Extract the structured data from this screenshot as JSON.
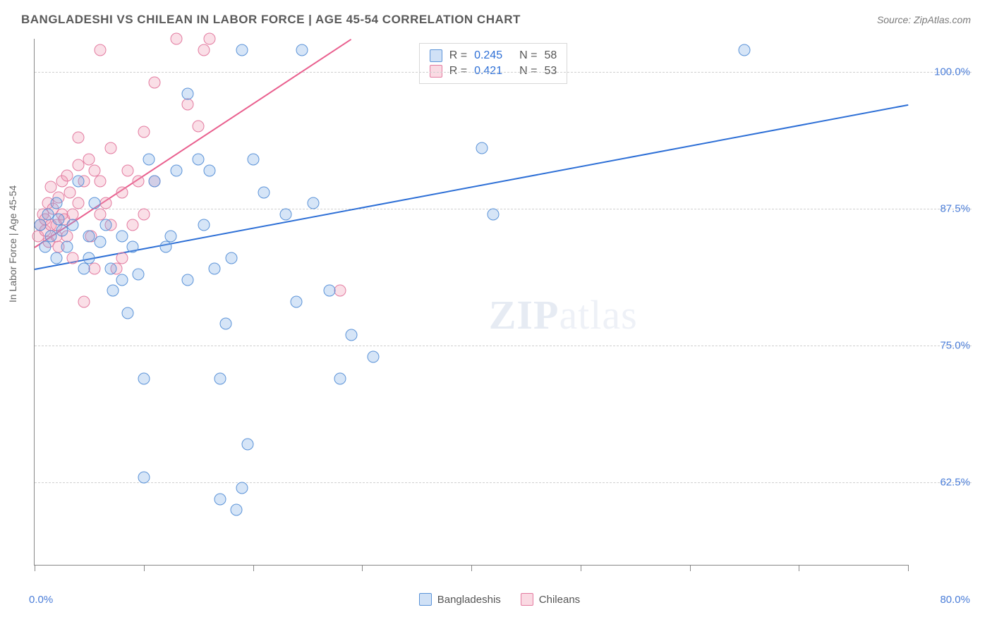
{
  "header": {
    "title": "BANGLADESHI VS CHILEAN IN LABOR FORCE | AGE 45-54 CORRELATION CHART",
    "source": "Source: ZipAtlas.com"
  },
  "watermark": {
    "bold": "ZIP",
    "rest": "atlas"
  },
  "chart": {
    "type": "scatter",
    "y_axis_title": "In Labor Force | Age 45-54",
    "xlim": [
      0,
      80
    ],
    "ylim": [
      55,
      103
    ],
    "x_ticks": [
      0,
      10,
      20,
      30,
      40,
      50,
      60,
      70,
      80
    ],
    "y_ticks": [
      62.5,
      75.0,
      87.5,
      100.0
    ],
    "y_tick_labels": [
      "62.5%",
      "75.0%",
      "87.5%",
      "100.0%"
    ],
    "x_min_label": "0.0%",
    "x_max_label": "80.0%",
    "grid_color": "#d0d0d0",
    "background_color": "#ffffff",
    "marker_size": 17,
    "series": {
      "bangladeshi": {
        "label": "Bangladeshis",
        "color_fill": "rgba(120,170,230,0.30)",
        "color_stroke": "#5b93d8",
        "trend_color": "#2d6fd6",
        "R": "0.245",
        "N": "58",
        "trend": {
          "x1": 0,
          "y1": 82,
          "x2": 80,
          "y2": 97
        },
        "points": [
          [
            0.5,
            86
          ],
          [
            1,
            84
          ],
          [
            1.2,
            87
          ],
          [
            1.5,
            85
          ],
          [
            2,
            83
          ],
          [
            2,
            88
          ],
          [
            2.2,
            86.5
          ],
          [
            2.5,
            85.5
          ],
          [
            3,
            84
          ],
          [
            3.5,
            86
          ],
          [
            4,
            90
          ],
          [
            4.5,
            82
          ],
          [
            5,
            85
          ],
          [
            5,
            83
          ],
          [
            5.5,
            88
          ],
          [
            6,
            84.5
          ],
          [
            6.5,
            86
          ],
          [
            7,
            82
          ],
          [
            7.2,
            80
          ],
          [
            8,
            81
          ],
          [
            8,
            85
          ],
          [
            8.5,
            78
          ],
          [
            9,
            84
          ],
          [
            9.5,
            81.5
          ],
          [
            10,
            72
          ],
          [
            10,
            63
          ],
          [
            10.5,
            92
          ],
          [
            11,
            90
          ],
          [
            12,
            84
          ],
          [
            12.5,
            85
          ],
          [
            13,
            91
          ],
          [
            14,
            81
          ],
          [
            14,
            98
          ],
          [
            15,
            92
          ],
          [
            15.5,
            86
          ],
          [
            16,
            91
          ],
          [
            16.5,
            82
          ],
          [
            17,
            61
          ],
          [
            17,
            72
          ],
          [
            17.5,
            77
          ],
          [
            18,
            83
          ],
          [
            18.5,
            60
          ],
          [
            19,
            62
          ],
          [
            19,
            102
          ],
          [
            19.5,
            66
          ],
          [
            20,
            92
          ],
          [
            21,
            89
          ],
          [
            23,
            87
          ],
          [
            24,
            79
          ],
          [
            24.5,
            102
          ],
          [
            25.5,
            88
          ],
          [
            27,
            80
          ],
          [
            28,
            72
          ],
          [
            29,
            76
          ],
          [
            31,
            74
          ],
          [
            41,
            93
          ],
          [
            42,
            87
          ],
          [
            65,
            102
          ]
        ]
      },
      "chilean": {
        "label": "Chileans",
        "color_fill": "rgba(240,150,175,0.30)",
        "color_stroke": "#e37ba0",
        "trend_color": "#e95f8e",
        "R": "0.421",
        "N": "53",
        "trend": {
          "x1": 0,
          "y1": 84,
          "x2": 29,
          "y2": 103
        },
        "points": [
          [
            0.3,
            85
          ],
          [
            0.5,
            86
          ],
          [
            0.8,
            87
          ],
          [
            1,
            86.5
          ],
          [
            1,
            85.5
          ],
          [
            1.2,
            88
          ],
          [
            1.3,
            84.5
          ],
          [
            1.5,
            86
          ],
          [
            1.5,
            89.5
          ],
          [
            1.7,
            87.5
          ],
          [
            2,
            86
          ],
          [
            2,
            85
          ],
          [
            2.2,
            84
          ],
          [
            2.2,
            88.5
          ],
          [
            2.5,
            90
          ],
          [
            2.5,
            87
          ],
          [
            2.7,
            86.5
          ],
          [
            3,
            85
          ],
          [
            3,
            90.5
          ],
          [
            3.2,
            89
          ],
          [
            3.5,
            87
          ],
          [
            3.5,
            83
          ],
          [
            4,
            91.5
          ],
          [
            4,
            88
          ],
          [
            4,
            94
          ],
          [
            4.5,
            79
          ],
          [
            4.5,
            90
          ],
          [
            5,
            92
          ],
          [
            5.2,
            85
          ],
          [
            5.5,
            91
          ],
          [
            5.5,
            82
          ],
          [
            6,
            87
          ],
          [
            6,
            90
          ],
          [
            6,
            102
          ],
          [
            6.5,
            88
          ],
          [
            7,
            93
          ],
          [
            7,
            86
          ],
          [
            7.5,
            82
          ],
          [
            8,
            89
          ],
          [
            8,
            83
          ],
          [
            8.5,
            91
          ],
          [
            9,
            86
          ],
          [
            9.5,
            90
          ],
          [
            10,
            87
          ],
          [
            10,
            94.5
          ],
          [
            11,
            90
          ],
          [
            11,
            99
          ],
          [
            13,
            103
          ],
          [
            14,
            97
          ],
          [
            15,
            95
          ],
          [
            15.5,
            102
          ],
          [
            16,
            103
          ],
          [
            28,
            80
          ]
        ]
      }
    }
  },
  "stats_box": {
    "rows": [
      {
        "swatch": "blue",
        "r_label": "R =",
        "r_val": "0.245",
        "n_label": "N =",
        "n_val": "58"
      },
      {
        "swatch": "pink",
        "r_label": "R =",
        "r_val": "0.421",
        "n_label": "N =",
        "n_val": "53"
      }
    ]
  },
  "bottom_legend": {
    "items": [
      {
        "swatch": "blue",
        "label": "Bangladeshis"
      },
      {
        "swatch": "pink",
        "label": "Chileans"
      }
    ]
  }
}
